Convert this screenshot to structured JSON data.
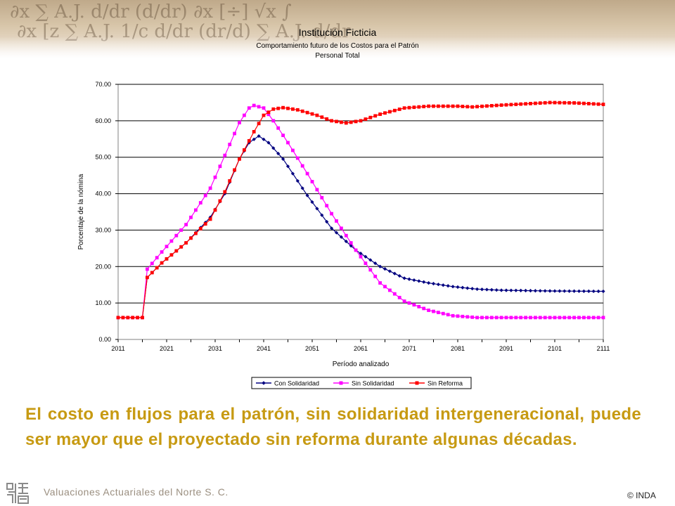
{
  "header": {
    "title": "Institución Ficticia",
    "subtitle": "Comportamiento futuro de los Costos para el Patrón",
    "subtitle2": "Personal Total"
  },
  "chart_data": {
    "type": "line",
    "xlabel": "Período analizado",
    "ylabel": "Porcentaje de la nómina",
    "xlim": [
      2011,
      2111
    ],
    "ylim": [
      0,
      70
    ],
    "x_ticks": [
      "2011",
      "2021",
      "2031",
      "2041",
      "2051",
      "2061",
      "2071",
      "2081",
      "2091",
      "2101",
      "2111"
    ],
    "y_ticks": [
      "0.00",
      "10.00",
      "20.00",
      "30.00",
      "40.00",
      "50.00",
      "60.00",
      "70.00"
    ],
    "grid": "horizontal",
    "legend_position": "bottom",
    "x_step": 1,
    "series": [
      {
        "name": "Con Solidaridad",
        "color": "#000080",
        "marker": "diamond",
        "points": [
          [
            2011,
            6.0
          ],
          [
            2016,
            6.0
          ],
          [
            2017,
            17.0
          ],
          [
            2020,
            21.0
          ],
          [
            2025,
            26.5
          ],
          [
            2030,
            33.5
          ],
          [
            2033,
            40.0
          ],
          [
            2036,
            49.5
          ],
          [
            2038,
            54.0
          ],
          [
            2040,
            55.8
          ],
          [
            2042,
            54.0
          ],
          [
            2045,
            49.5
          ],
          [
            2050,
            39.5
          ],
          [
            2055,
            30.5
          ],
          [
            2060,
            24.5
          ],
          [
            2065,
            20.0
          ],
          [
            2070,
            16.8
          ],
          [
            2075,
            15.5
          ],
          [
            2080,
            14.5
          ],
          [
            2085,
            13.8
          ],
          [
            2090,
            13.5
          ],
          [
            2100,
            13.3
          ],
          [
            2111,
            13.2
          ]
        ]
      },
      {
        "name": "Sin Solidaridad",
        "color": "#ff00ff",
        "marker": "square",
        "points": [
          [
            2011,
            6.0
          ],
          [
            2016,
            6.0
          ],
          [
            2016.5,
            18.5
          ],
          [
            2020,
            24.0
          ],
          [
            2025,
            31.5
          ],
          [
            2030,
            41.5
          ],
          [
            2033,
            50.5
          ],
          [
            2036,
            59.5
          ],
          [
            2038,
            63.5
          ],
          [
            2039,
            64.2
          ],
          [
            2041,
            63.5
          ],
          [
            2043,
            60.0
          ],
          [
            2046,
            54.0
          ],
          [
            2050,
            45.5
          ],
          [
            2055,
            34.5
          ],
          [
            2060,
            24.5
          ],
          [
            2065,
            15.5
          ],
          [
            2070,
            10.5
          ],
          [
            2075,
            8.0
          ],
          [
            2080,
            6.5
          ],
          [
            2085,
            6.0
          ],
          [
            2111,
            6.0
          ]
        ]
      },
      {
        "name": "Sin Reforma",
        "color": "#ff0000",
        "marker": "square",
        "points": [
          [
            2011,
            6.0
          ],
          [
            2016,
            6.0
          ],
          [
            2017,
            17.0
          ],
          [
            2020,
            21.0
          ],
          [
            2025,
            26.5
          ],
          [
            2030,
            33.0
          ],
          [
            2033,
            40.5
          ],
          [
            2036,
            49.5
          ],
          [
            2039,
            57.0
          ],
          [
            2041,
            61.5
          ],
          [
            2043,
            63.2
          ],
          [
            2045,
            63.6
          ],
          [
            2048,
            63.0
          ],
          [
            2052,
            61.5
          ],
          [
            2055,
            60.0
          ],
          [
            2058,
            59.4
          ],
          [
            2061,
            60.0
          ],
          [
            2065,
            61.8
          ],
          [
            2070,
            63.5
          ],
          [
            2075,
            64.0
          ],
          [
            2081,
            64.0
          ],
          [
            2084,
            63.8
          ],
          [
            2090,
            64.3
          ],
          [
            2100,
            65.0
          ],
          [
            2105,
            64.9
          ],
          [
            2111,
            64.5
          ]
        ]
      }
    ]
  },
  "caption": "El costo en flujos para el patrón, sin solidaridad intergeneracional, puede ser mayor que el proyectado sin reforma durante algunas décadas.",
  "footer": {
    "company": "Valuaciones Actuariales del Norte S. C.",
    "copyright": "© INDA"
  }
}
